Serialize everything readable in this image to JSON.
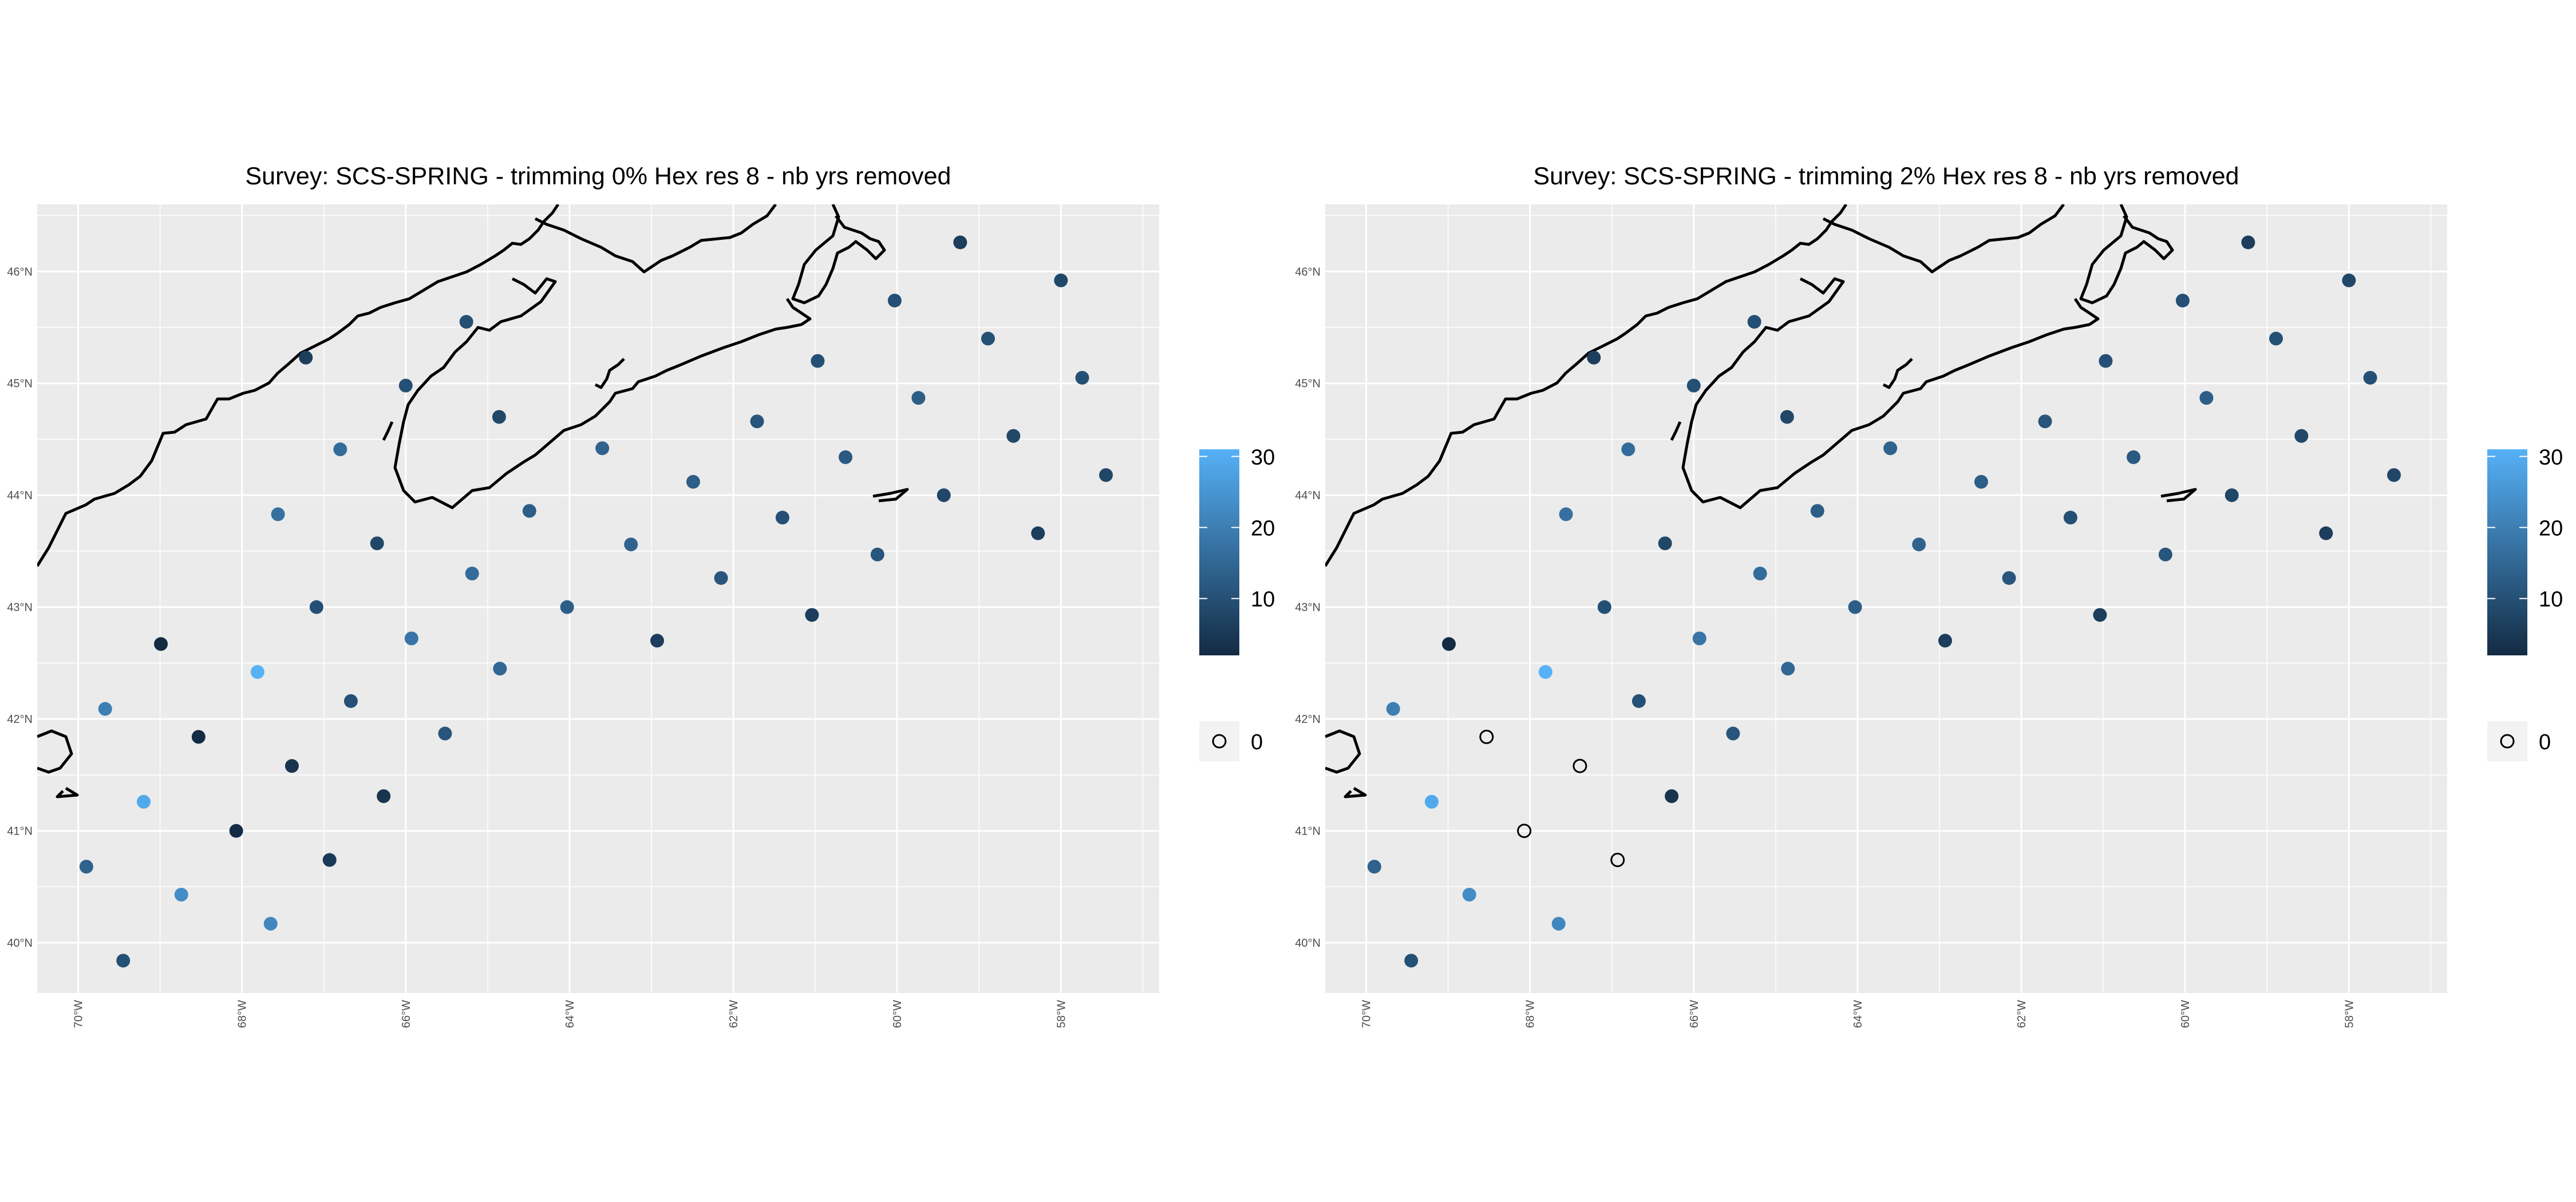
{
  "chart_data": [
    {
      "type": "scatter",
      "title": "Survey: SCS-SPRING - trimming 0% Hex res 8 - nb yrs removed",
      "xlim": [
        -70.5,
        -56.8
      ],
      "ylim": [
        39.55,
        46.6
      ],
      "x_ticks": [
        "70°W",
        "68°W",
        "66°W",
        "64°W",
        "62°W",
        "60°W",
        "58°W"
      ],
      "y_ticks": [
        "40°N",
        "41°N",
        "42°N",
        "43°N",
        "44°N",
        "45°N",
        "46°N"
      ],
      "grid": true,
      "colorbar": {
        "min_label": "0",
        "labels": [
          "10",
          "20",
          "30"
        ],
        "ticks": [
          10,
          20,
          30
        ],
        "range": [
          2,
          31
        ],
        "low_color": "#132b43",
        "high_color": "#56b1f7"
      },
      "zero_legend": {
        "label": "0"
      },
      "points": [
        {
          "x": -69.9,
          "y": 40.68,
          "v": 14
        },
        {
          "x": -69.45,
          "y": 39.84,
          "v": 10
        },
        {
          "x": -69.67,
          "y": 42.09,
          "v": 20
        },
        {
          "x": -69.2,
          "y": 41.26,
          "v": 29
        },
        {
          "x": -68.99,
          "y": 42.67,
          "v": 2
        },
        {
          "x": -68.74,
          "y": 40.43,
          "v": 23
        },
        {
          "x": -68.53,
          "y": 41.84,
          "v": 2
        },
        {
          "x": -68.07,
          "y": 41.0,
          "v": 2
        },
        {
          "x": -67.81,
          "y": 42.42,
          "v": 31
        },
        {
          "x": -67.65,
          "y": 40.17,
          "v": 22
        },
        {
          "x": -67.56,
          "y": 43.83,
          "v": 17
        },
        {
          "x": -67.39,
          "y": 41.58,
          "v": 4
        },
        {
          "x": -67.22,
          "y": 45.23,
          "v": 6
        },
        {
          "x": -67.09,
          "y": 43.0,
          "v": 10
        },
        {
          "x": -66.93,
          "y": 40.74,
          "v": 5
        },
        {
          "x": -66.8,
          "y": 44.41,
          "v": 16
        },
        {
          "x": -66.67,
          "y": 42.16,
          "v": 10
        },
        {
          "x": -66.35,
          "y": 43.57,
          "v": 8
        },
        {
          "x": -66.27,
          "y": 41.31,
          "v": 4
        },
        {
          "x": -66.0,
          "y": 44.98,
          "v": 10
        },
        {
          "x": -65.93,
          "y": 42.72,
          "v": 18
        },
        {
          "x": -65.52,
          "y": 41.87,
          "v": 11
        },
        {
          "x": -65.26,
          "y": 45.55,
          "v": 10
        },
        {
          "x": -65.19,
          "y": 43.3,
          "v": 16
        },
        {
          "x": -64.86,
          "y": 44.7,
          "v": 8
        },
        {
          "x": -64.85,
          "y": 42.45,
          "v": 15
        },
        {
          "x": -64.49,
          "y": 43.86,
          "v": 13
        },
        {
          "x": -64.03,
          "y": 43.0,
          "v": 13
        },
        {
          "x": -63.6,
          "y": 44.42,
          "v": 14
        },
        {
          "x": -63.25,
          "y": 43.56,
          "v": 14
        },
        {
          "x": -62.93,
          "y": 42.7,
          "v": 6
        },
        {
          "x": -62.49,
          "y": 44.12,
          "v": 13
        },
        {
          "x": -62.15,
          "y": 43.26,
          "v": 11
        },
        {
          "x": -61.71,
          "y": 44.66,
          "v": 11
        },
        {
          "x": -61.4,
          "y": 43.8,
          "v": 10
        },
        {
          "x": -61.04,
          "y": 42.93,
          "v": 6
        },
        {
          "x": -60.97,
          "y": 45.2,
          "v": 10
        },
        {
          "x": -60.63,
          "y": 44.34,
          "v": 12
        },
        {
          "x": -60.24,
          "y": 43.47,
          "v": 11
        },
        {
          "x": -60.03,
          "y": 45.74,
          "v": 10
        },
        {
          "x": -59.74,
          "y": 44.87,
          "v": 13
        },
        {
          "x": -59.43,
          "y": 44.0,
          "v": 8
        },
        {
          "x": -59.23,
          "y": 46.26,
          "v": 6
        },
        {
          "x": -58.89,
          "y": 45.4,
          "v": 10
        },
        {
          "x": -58.58,
          "y": 44.53,
          "v": 8
        },
        {
          "x": -58.28,
          "y": 43.66,
          "v": 6
        },
        {
          "x": -58.0,
          "y": 45.92,
          "v": 8
        },
        {
          "x": -57.74,
          "y": 45.05,
          "v": 10
        },
        {
          "x": -57.45,
          "y": 44.18,
          "v": 8
        }
      ]
    },
    {
      "type": "scatter",
      "title": "Survey: SCS-SPRING - trimming 2% Hex res 8 - nb yrs removed",
      "xlim": [
        -70.5,
        -56.8
      ],
      "ylim": [
        39.55,
        46.6
      ],
      "x_ticks": [
        "70°W",
        "68°W",
        "66°W",
        "64°W",
        "62°W",
        "60°W",
        "58°W"
      ],
      "y_ticks": [
        "40°N",
        "41°N",
        "42°N",
        "43°N",
        "44°N",
        "45°N",
        "46°N"
      ],
      "grid": true,
      "colorbar": {
        "min_label": "0",
        "labels": [
          "10",
          "20",
          "30"
        ],
        "ticks": [
          10,
          20,
          30
        ],
        "range": [
          2,
          31
        ],
        "low_color": "#132b43",
        "high_color": "#56b1f7"
      },
      "zero_legend": {
        "label": "0"
      },
      "points": [
        {
          "x": -69.9,
          "y": 40.68,
          "v": 14
        },
        {
          "x": -69.45,
          "y": 39.84,
          "v": 10
        },
        {
          "x": -69.67,
          "y": 42.09,
          "v": 20
        },
        {
          "x": -69.2,
          "y": 41.26,
          "v": 29
        },
        {
          "x": -68.99,
          "y": 42.67,
          "v": 2
        },
        {
          "x": -68.74,
          "y": 40.43,
          "v": 23
        },
        {
          "x": -68.53,
          "y": 41.84,
          "v": 0
        },
        {
          "x": -68.07,
          "y": 41.0,
          "v": 0
        },
        {
          "x": -67.81,
          "y": 42.42,
          "v": 31
        },
        {
          "x": -67.65,
          "y": 40.17,
          "v": 22
        },
        {
          "x": -67.56,
          "y": 43.83,
          "v": 17
        },
        {
          "x": -67.39,
          "y": 41.58,
          "v": 0
        },
        {
          "x": -67.22,
          "y": 45.23,
          "v": 6
        },
        {
          "x": -67.09,
          "y": 43.0,
          "v": 10
        },
        {
          "x": -66.93,
          "y": 40.74,
          "v": 0
        },
        {
          "x": -66.8,
          "y": 44.41,
          "v": 16
        },
        {
          "x": -66.67,
          "y": 42.16,
          "v": 10
        },
        {
          "x": -66.35,
          "y": 43.57,
          "v": 8
        },
        {
          "x": -66.27,
          "y": 41.31,
          "v": 4
        },
        {
          "x": -66.0,
          "y": 44.98,
          "v": 10
        },
        {
          "x": -65.93,
          "y": 42.72,
          "v": 18
        },
        {
          "x": -65.52,
          "y": 41.87,
          "v": 11
        },
        {
          "x": -65.26,
          "y": 45.55,
          "v": 10
        },
        {
          "x": -65.19,
          "y": 43.3,
          "v": 16
        },
        {
          "x": -64.86,
          "y": 44.7,
          "v": 8
        },
        {
          "x": -64.85,
          "y": 42.45,
          "v": 15
        },
        {
          "x": -64.49,
          "y": 43.86,
          "v": 13
        },
        {
          "x": -64.03,
          "y": 43.0,
          "v": 13
        },
        {
          "x": -63.6,
          "y": 44.42,
          "v": 14
        },
        {
          "x": -63.25,
          "y": 43.56,
          "v": 14
        },
        {
          "x": -62.93,
          "y": 42.7,
          "v": 6
        },
        {
          "x": -62.49,
          "y": 44.12,
          "v": 13
        },
        {
          "x": -62.15,
          "y": 43.26,
          "v": 11
        },
        {
          "x": -61.71,
          "y": 44.66,
          "v": 11
        },
        {
          "x": -61.4,
          "y": 43.8,
          "v": 10
        },
        {
          "x": -61.04,
          "y": 42.93,
          "v": 6
        },
        {
          "x": -60.97,
          "y": 45.2,
          "v": 10
        },
        {
          "x": -60.63,
          "y": 44.34,
          "v": 12
        },
        {
          "x": -60.24,
          "y": 43.47,
          "v": 11
        },
        {
          "x": -60.03,
          "y": 45.74,
          "v": 10
        },
        {
          "x": -59.74,
          "y": 44.87,
          "v": 13
        },
        {
          "x": -59.43,
          "y": 44.0,
          "v": 8
        },
        {
          "x": -59.23,
          "y": 46.26,
          "v": 6
        },
        {
          "x": -58.89,
          "y": 45.4,
          "v": 10
        },
        {
          "x": -58.58,
          "y": 44.53,
          "v": 8
        },
        {
          "x": -58.28,
          "y": 43.66,
          "v": 6
        },
        {
          "x": -58.0,
          "y": 45.92,
          "v": 8
        },
        {
          "x": -57.74,
          "y": 45.05,
          "v": 10
        },
        {
          "x": -57.45,
          "y": 44.18,
          "v": 8
        }
      ]
    }
  ]
}
